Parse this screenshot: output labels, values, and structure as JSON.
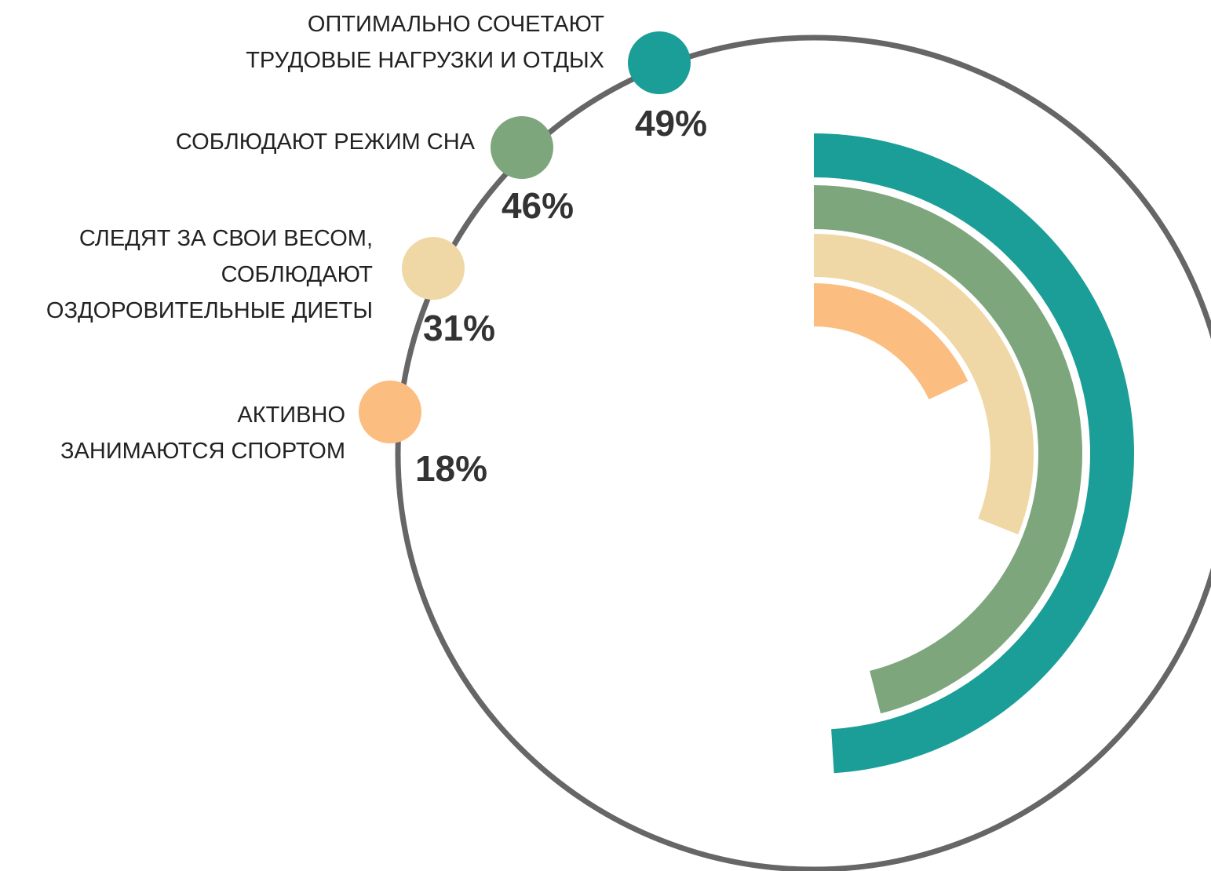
{
  "chart_data": {
    "type": "radial_bar",
    "categories": [
      "ОПТИМАЛЬНО СОЧЕТАЮТ\nТРУДОВЫЕ НАГРУЗКИ И ОТДЫХ",
      "СОБЛЮДАЮТ РЕЖИМ СНА",
      "СЛЕДЯТ ЗА СВОИ ВЕСОМ,\nСОБЛЮДАЮТ\nОЗДОРОВИТЕЛЬНЫЕ ДИЕТЫ",
      "АКТИВНО\nЗАНИМАЮТСЯ СПОРТОМ"
    ],
    "values": [
      49,
      46,
      31,
      18
    ],
    "value_labels": [
      "49%",
      "46%",
      "31%",
      "18%"
    ],
    "colors": [
      "#1a9e97",
      "#7ea67c",
      "#efd8a5",
      "#fbbd80"
    ],
    "ylim": [
      0,
      100
    ]
  }
}
